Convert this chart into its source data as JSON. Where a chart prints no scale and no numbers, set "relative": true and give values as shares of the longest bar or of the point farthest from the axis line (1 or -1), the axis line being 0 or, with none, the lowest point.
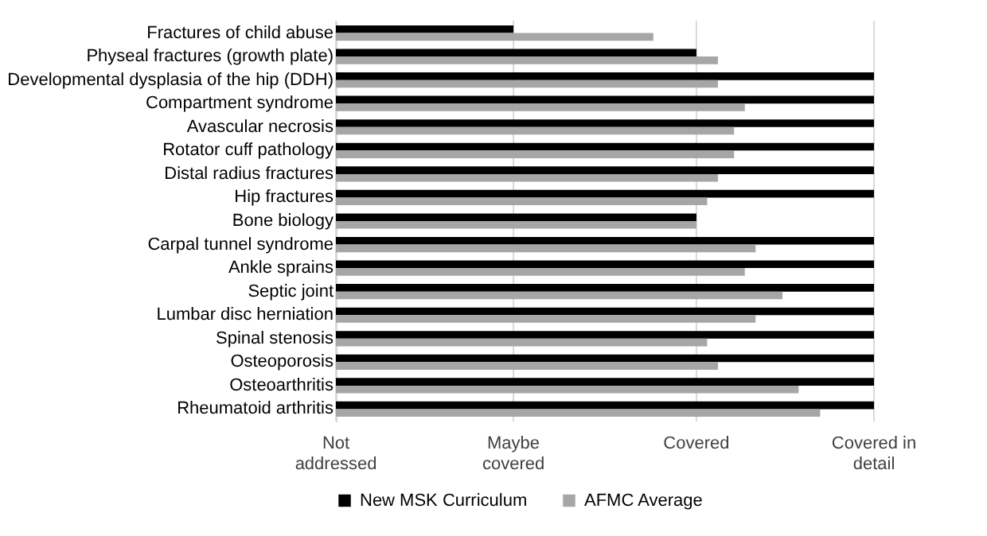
{
  "chart_data": {
    "type": "bar",
    "orientation": "horizontal",
    "relative": true,
    "categories": [
      "Fractures of child abuse",
      "Physeal fractures (growth plate)",
      "Developmental dysplasia of the hip (DDH)",
      "Compartment syndrome",
      "Avascular necrosis",
      "Rotator cuff pathology",
      "Distal radius fractures",
      "Hip fractures",
      "Bone biology",
      "Carpal tunnel syndrome",
      "Ankle sprains",
      "Septic joint",
      "Lumbar disc herniation",
      "Spinal stenosis",
      "Osteoporosis",
      "Osteoarthritis",
      "Rheumatoid arthritis"
    ],
    "series": [
      {
        "name": "New MSK Curriculum",
        "color": "#000000",
        "values": [
          0.33,
          0.67,
          1,
          1,
          1,
          1,
          1,
          1,
          0.67,
          1,
          1,
          1,
          1,
          1,
          1,
          1,
          1
        ]
      },
      {
        "name": "AFMC Average",
        "color": "#a6a6a6",
        "values": [
          0.59,
          0.71,
          0.71,
          0.76,
          0.74,
          0.74,
          0.71,
          0.69,
          0.67,
          0.78,
          0.76,
          0.83,
          0.78,
          0.69,
          0.71,
          0.86,
          0.9
        ]
      }
    ],
    "ref_lines": [
      {
        "axis": "x",
        "value": 0,
        "label": "Not addressed",
        "color": "#d9d9d9"
      },
      {
        "axis": "x",
        "value": 0.33,
        "label": "Maybe covered",
        "color": "#d9d9d9"
      },
      {
        "axis": "x",
        "value": 0.67,
        "label": "Covered",
        "color": "#d9d9d9"
      },
      {
        "axis": "x",
        "value": 1,
        "label": "Covered in detail",
        "color": "#d9d9d9"
      }
    ],
    "legend": "bottom"
  }
}
